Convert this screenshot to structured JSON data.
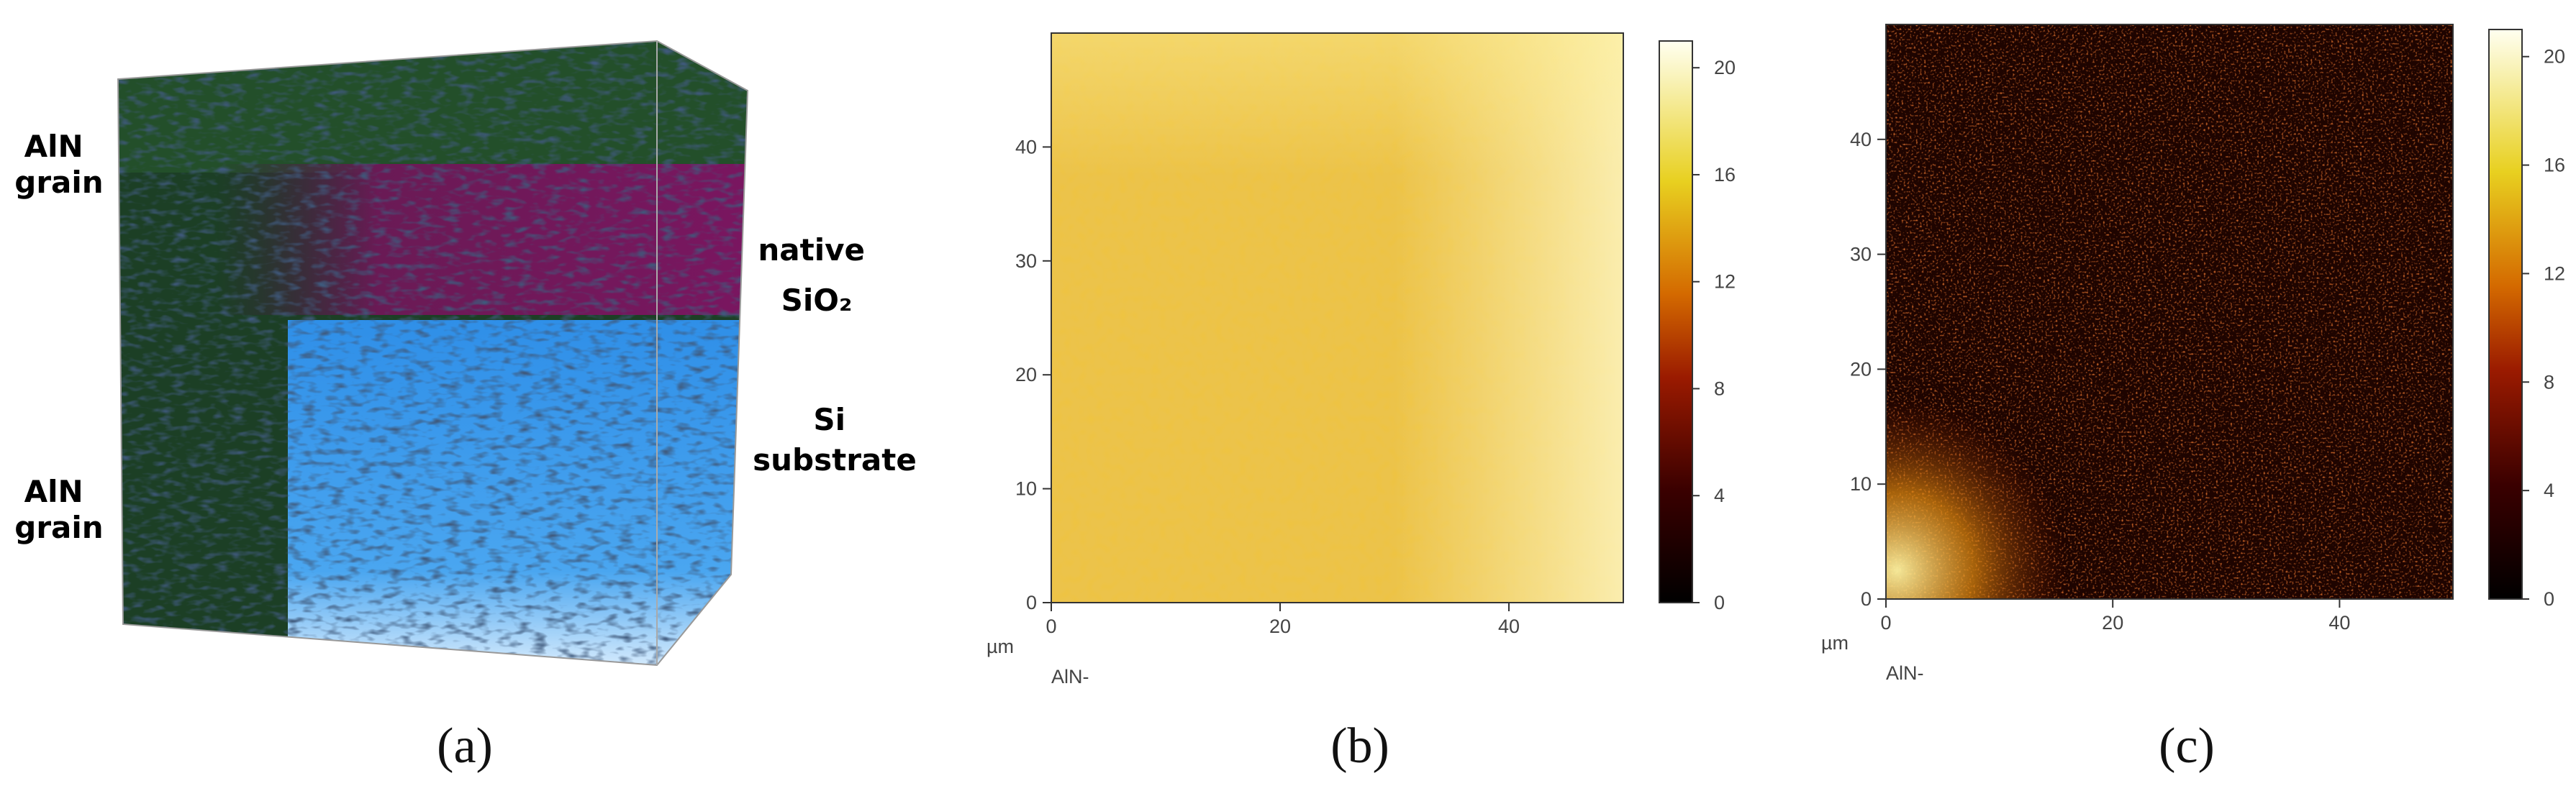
{
  "panels": [
    {
      "label": "(a)",
      "annotations": [
        {
          "lines": [
            "AlN",
            "grain"
          ],
          "color": "#1f6b1f"
        },
        {
          "lines": [
            "native",
            "SiO₂"
          ],
          "color": "#5a1846"
        },
        {
          "lines": [
            "Si",
            "substrate"
          ],
          "color": "#2a9ae8"
        },
        {
          "lines": [
            "AlN",
            "grain"
          ],
          "color": "#1f6b1f"
        }
      ]
    },
    {
      "label": "(b)",
      "unit": "µm",
      "axis_label": "AlN-",
      "xlim": [
        0,
        50
      ],
      "ylim": [
        0,
        50
      ],
      "xticks": [
        0,
        20,
        40
      ],
      "yticks": [
        0,
        10,
        20,
        30,
        40
      ],
      "colorbar": {
        "lim": [
          0,
          21
        ],
        "ticks": [
          0,
          4,
          8,
          12,
          16,
          20
        ]
      }
    },
    {
      "label": "(c)",
      "unit": "µm",
      "axis_label": "AlN-",
      "xlim": [
        0,
        50
      ],
      "ylim": [
        0,
        50
      ],
      "xticks": [
        0,
        20,
        40
      ],
      "yticks": [
        0,
        10,
        20,
        30,
        40
      ],
      "colorbar": {
        "lim": [
          0,
          21
        ],
        "ticks": [
          0,
          4,
          8,
          12,
          16,
          20
        ]
      }
    }
  ]
}
